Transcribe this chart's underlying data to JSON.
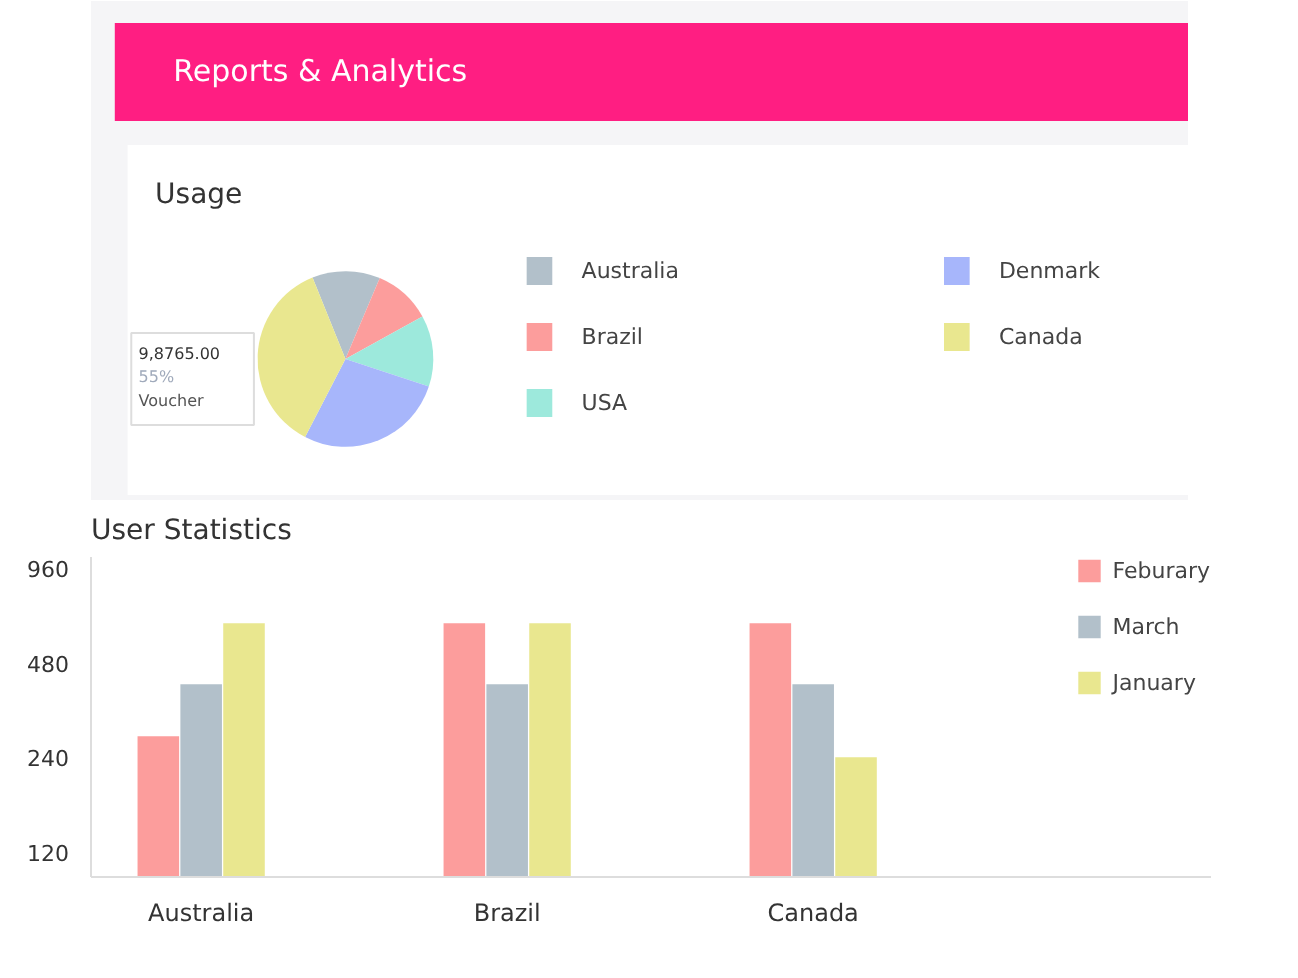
{
  "chart_data": [
    {
      "type": "pie",
      "title": "Usage",
      "annotations": [
        "Reports & Analytics",
        "9,8765.00",
        "55%",
        "Voucher"
      ],
      "categories": [
        "Australia",
        "Brazil",
        "USA",
        "Denmark",
        "Canada"
      ],
      "values": [
        12.5,
        10.6,
        13.1,
        27.5,
        36.3
      ],
      "colors": [
        "#b2c0ca",
        "#fc9d9c",
        "#9de9dc",
        "#a7b6fb",
        "#e9e78f"
      ],
      "legend": "right"
    },
    {
      "type": "bar",
      "title": "User Statistics",
      "categories": [
        "Australia",
        "Brazil",
        "Canada"
      ],
      "series": [
        {
          "name": "Feburary",
          "color": "#fc9d9c",
          "values": [
            280,
            640,
            640
          ]
        },
        {
          "name": "March",
          "color": "#b2c0ca",
          "values": [
            410,
            410,
            410
          ]
        },
        {
          "name": "January",
          "color": "#e9e78f",
          "values": [
            640,
            640,
            240
          ]
        }
      ],
      "log": true,
      "ylim": [
        100,
        1040
      ],
      "yticks": [
        120,
        240,
        480,
        960
      ],
      "grid": false,
      "legend": "top right"
    }
  ]
}
